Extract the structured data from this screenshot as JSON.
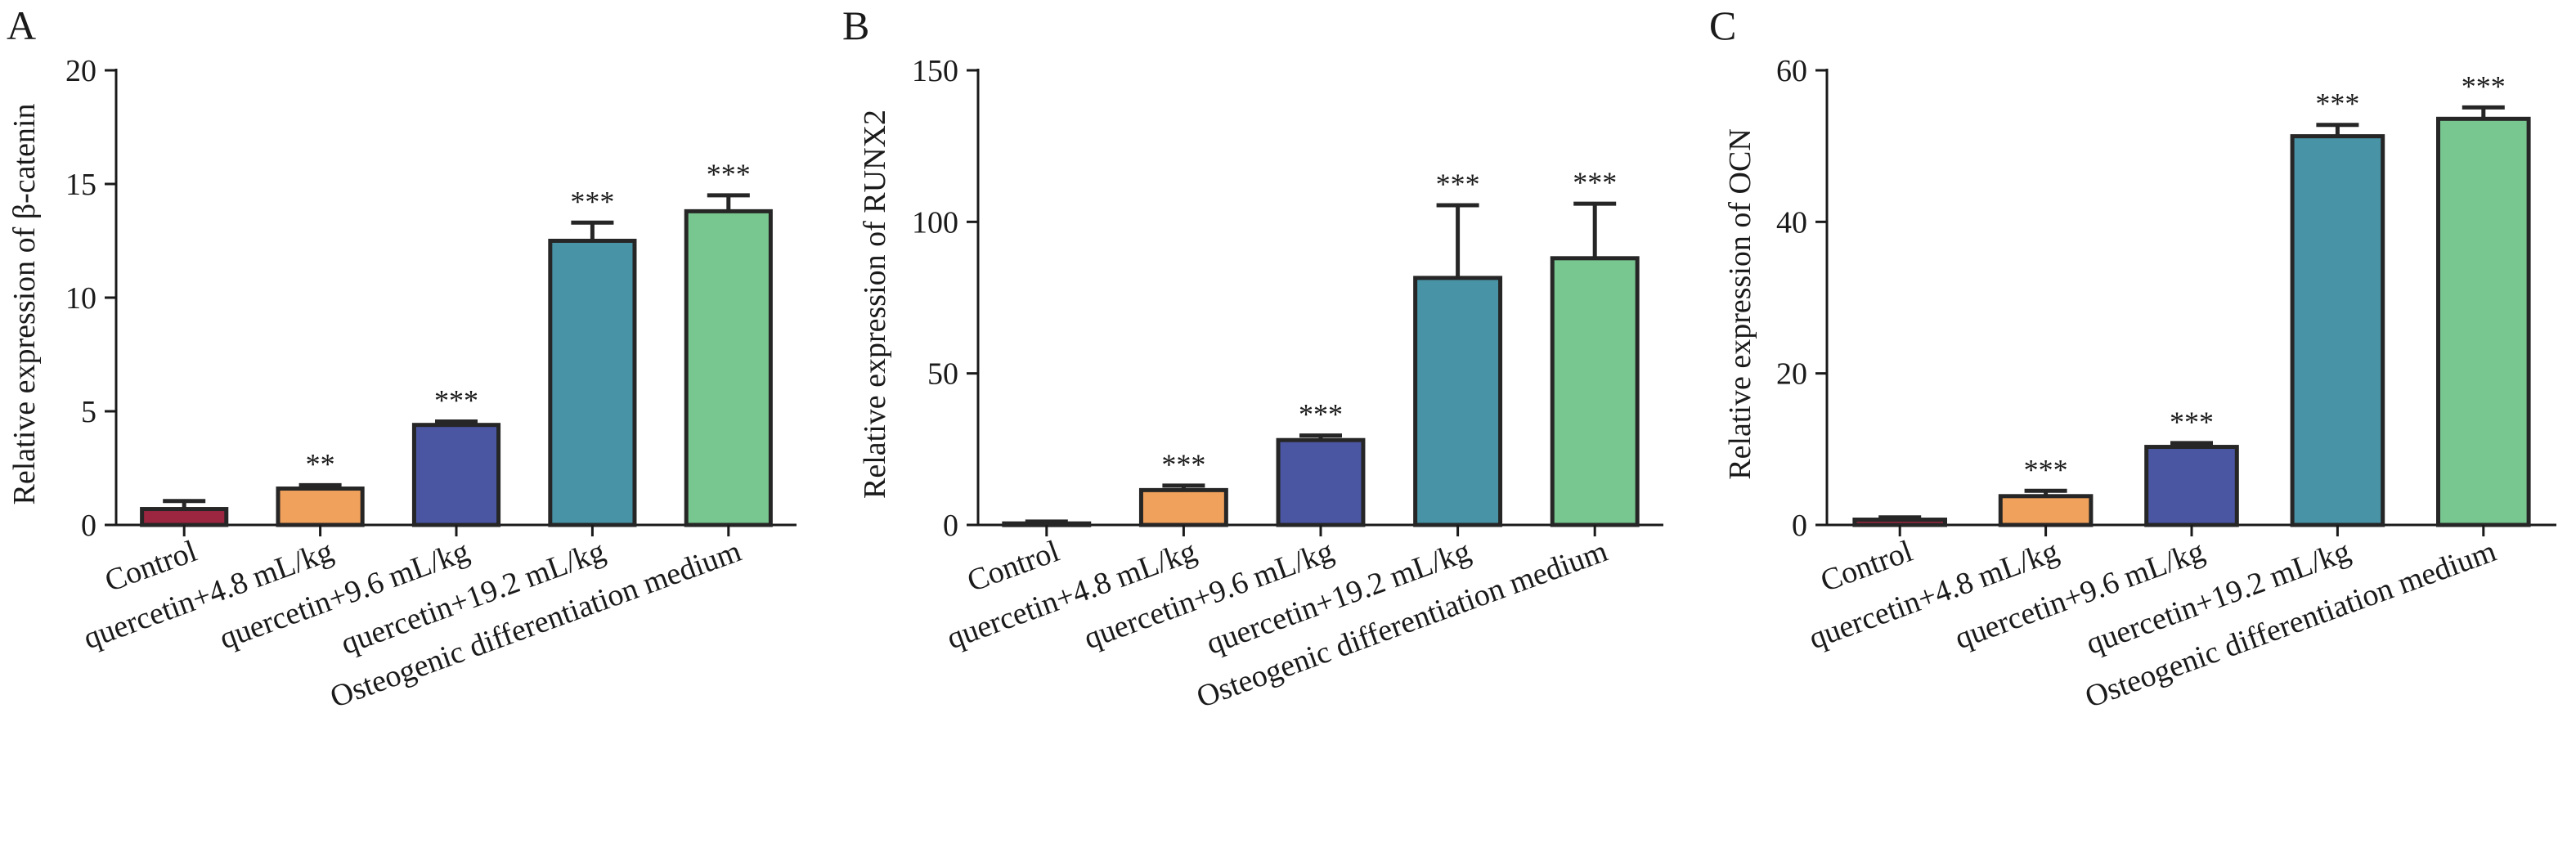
{
  "chart_data": [
    {
      "type": "bar",
      "panel": "A",
      "title": "",
      "xlabel": "",
      "ylabel": "Relative expression of β-catenin",
      "ylim": [
        0,
        20
      ],
      "yticks": [
        0,
        5,
        10,
        15,
        20
      ],
      "categories": [
        "Control",
        "quercetin+4.8 mL/kg",
        "quercetin+9.6 mL/kg",
        "quercetin+19.2 mL/kg",
        "Osteogenic differentiation medium"
      ],
      "values": [
        0.7,
        1.6,
        4.4,
        12.5,
        13.8
      ],
      "errors": [
        0.35,
        0.15,
        0.15,
        0.8,
        0.7
      ],
      "significance": [
        "",
        "**",
        "***",
        "***",
        "***"
      ],
      "colors": [
        "#9c2540",
        "#f0a15b",
        "#4a56a1",
        "#4893a6",
        "#78c790"
      ],
      "grid": false
    },
    {
      "type": "bar",
      "panel": "B",
      "title": "",
      "xlabel": "",
      "ylabel": "Relative expression of RUNX2",
      "ylim": [
        0,
        150
      ],
      "yticks": [
        0,
        50,
        100,
        150
      ],
      "categories": [
        "Control",
        "quercetin+4.8 mL/kg",
        "quercetin+9.6 mL/kg",
        "quercetin+19.2 mL/kg",
        "Osteogenic differentiation medium"
      ],
      "values": [
        0.5,
        11.5,
        28,
        81.5,
        88
      ],
      "errors": [
        0.6,
        1.5,
        1.5,
        24,
        18
      ],
      "significance": [
        "",
        "***",
        "***",
        "***",
        "***"
      ],
      "colors": [
        "#9c2540",
        "#f0a15b",
        "#4a56a1",
        "#4893a6",
        "#78c790"
      ],
      "grid": false
    },
    {
      "type": "bar",
      "panel": "C",
      "title": "",
      "xlabel": "",
      "ylabel": "Relative expression of OCN",
      "ylim": [
        0,
        60
      ],
      "yticks": [
        0,
        20,
        40,
        60
      ],
      "categories": [
        "Control",
        "quercetin+4.8 mL/kg",
        "quercetin+9.6 mL/kg",
        "quercetin+19.2 mL/kg",
        "Osteogenic differentiation medium"
      ],
      "values": [
        0.7,
        3.8,
        10.3,
        51.3,
        53.6
      ],
      "errors": [
        0.3,
        0.7,
        0.5,
        1.5,
        1.5
      ],
      "significance": [
        "",
        "***",
        "***",
        "***",
        "***"
      ],
      "colors": [
        "#9c2540",
        "#f0a15b",
        "#4a56a1",
        "#4893a6",
        "#78c790"
      ],
      "grid": false
    }
  ]
}
